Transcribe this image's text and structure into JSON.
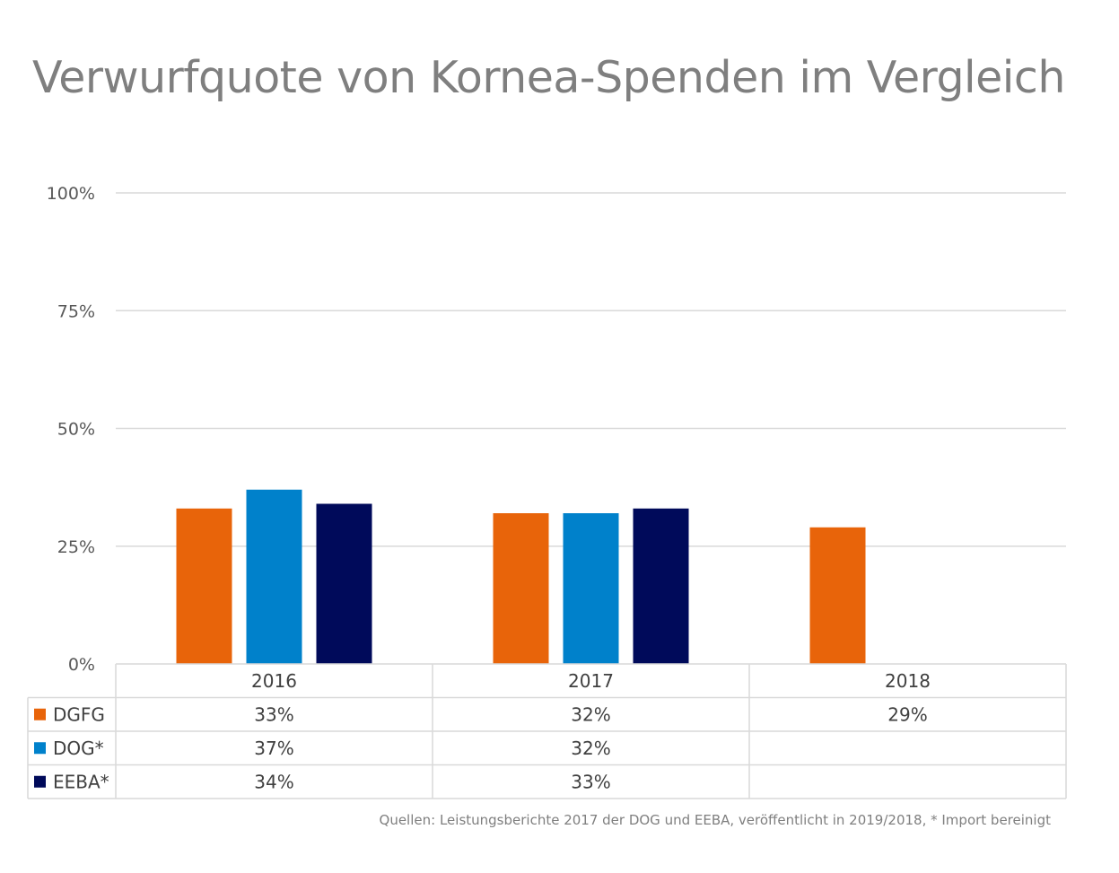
{
  "title": "Verwurfquote von Kornea-Spenden im Vergleich",
  "source": "Quellen: Leistungsberichte 2017 der DOG und EEBA, veröffentlicht in 2019/2018, * Import bereinigt",
  "colors": {
    "DGFG": "#e8640a",
    "DOG*": "#0081cb",
    "EEBA*": "#000a5a",
    "grid": "#d9d9d9",
    "table": "#d9d9d9"
  },
  "chart_data": {
    "type": "bar",
    "title": "Verwurfquote von Kornea-Spenden im Vergleich",
    "categories": [
      "2016",
      "2017",
      "2018"
    ],
    "series": [
      {
        "name": "DGFG",
        "color": "#e8640a",
        "values": [
          0.33,
          0.32,
          0.29
        ],
        "labels": [
          "33%",
          "32%",
          "29%"
        ]
      },
      {
        "name": "DOG*",
        "color": "#0081cb",
        "values": [
          0.37,
          0.32,
          null
        ],
        "labels": [
          "37%",
          "32%",
          ""
        ]
      },
      {
        "name": "EEBA*",
        "color": "#000a5a",
        "values": [
          0.34,
          0.33,
          null
        ],
        "labels": [
          "34%",
          "33%",
          ""
        ]
      }
    ],
    "yticks": [
      0,
      0.25,
      0.5,
      0.75,
      1.0
    ],
    "yticklabels": [
      "0%",
      "25%",
      "50%",
      "75%",
      "100%"
    ],
    "ylim": [
      0,
      1
    ],
    "xlabel": "",
    "ylabel": "",
    "grid": true,
    "legend": "data-table"
  }
}
